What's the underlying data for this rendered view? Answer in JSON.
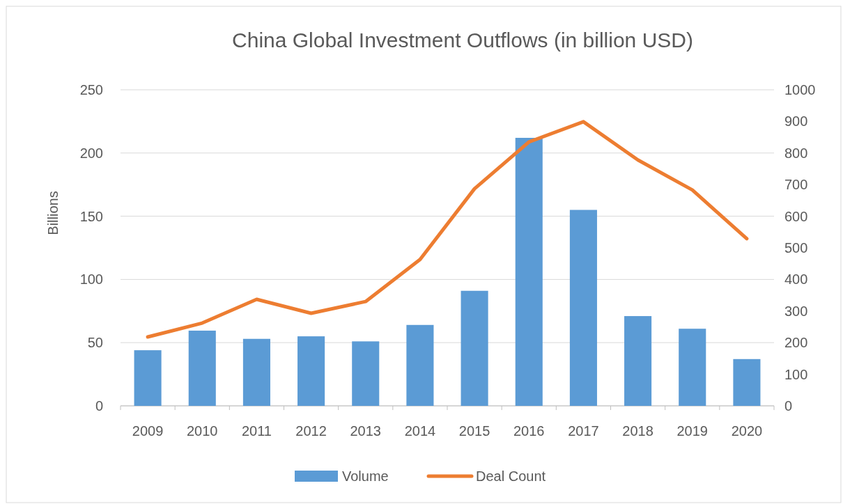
{
  "chart_data": {
    "type": "bar",
    "title": "China Global Investment Outflows (in billion USD)",
    "ylabel": "Billions",
    "categories": [
      "2009",
      "2010",
      "2011",
      "2012",
      "2013",
      "2014",
      "2015",
      "2016",
      "2017",
      "2018",
      "2019",
      "2020"
    ],
    "series": [
      {
        "name": "Volume",
        "color": "#5b9bd5",
        "values": [
          44,
          59.5,
          53,
          55,
          51,
          64,
          91,
          212,
          155,
          71,
          61,
          37
        ]
      },
      {
        "name": "Deal Count",
        "type": "line",
        "axis": "y2",
        "color": "#ed7d31",
        "values": [
          218,
          262,
          337,
          293,
          330,
          463,
          687,
          835,
          899,
          778,
          683,
          529
        ]
      }
    ],
    "ylim": [
      0,
      250
    ],
    "yticks": [
      0,
      50,
      100,
      150,
      200,
      250
    ],
    "y2lim": [
      0,
      1000
    ],
    "y2ticks": [
      0,
      100,
      200,
      300,
      400,
      500,
      600,
      700,
      800,
      900,
      1000
    ],
    "grid": "y",
    "legend": "bottom",
    "marker": "none",
    "line_style": "solid"
  }
}
